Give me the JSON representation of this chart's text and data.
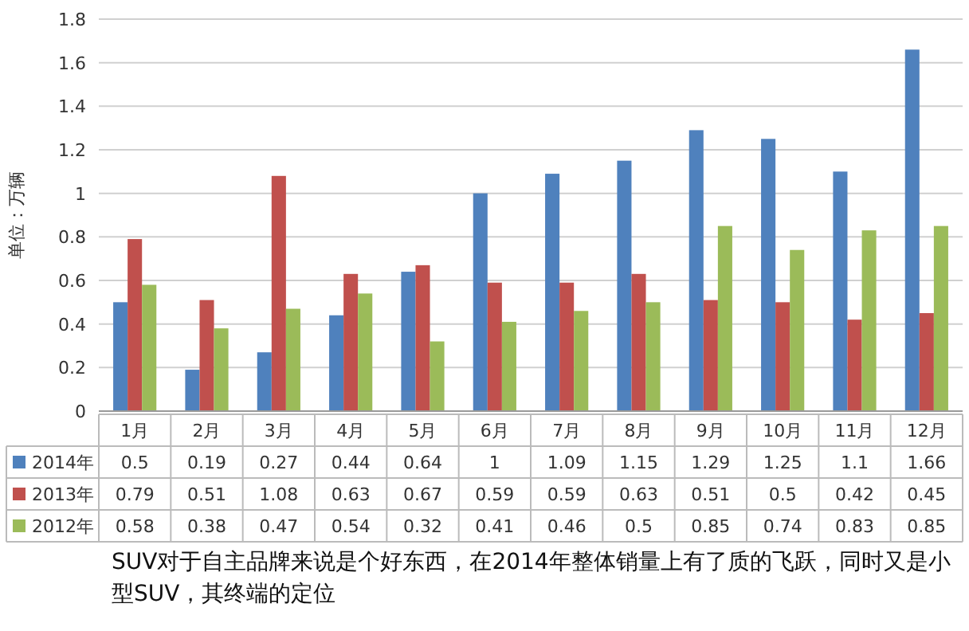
{
  "chart_data": {
    "type": "bar",
    "ylabel": "单位：万辆",
    "categories": [
      "1月",
      "2月",
      "3月",
      "4月",
      "5月",
      "6月",
      "7月",
      "8月",
      "9月",
      "10月",
      "11月",
      "12月"
    ],
    "series": [
      {
        "name": "2014年",
        "color": "#4f81bd",
        "values": [
          0.5,
          0.19,
          0.27,
          0.44,
          0.64,
          1,
          1.09,
          1.15,
          1.29,
          1.25,
          1.1,
          1.66
        ]
      },
      {
        "name": "2013年",
        "color": "#c0504d",
        "values": [
          0.79,
          0.51,
          1.08,
          0.63,
          0.67,
          0.59,
          0.59,
          0.63,
          0.51,
          0.5,
          0.42,
          0.45
        ]
      },
      {
        "name": "2012年",
        "color": "#9bbb59",
        "values": [
          0.58,
          0.38,
          0.47,
          0.54,
          0.32,
          0.41,
          0.46,
          0.5,
          0.85,
          0.74,
          0.83,
          0.85
        ]
      }
    ],
    "ylim": [
      0,
      1.8
    ],
    "yticks": [
      0,
      0.2,
      0.4,
      0.6,
      0.8,
      1,
      1.2,
      1.4,
      1.6,
      1.8
    ],
    "grid": "y",
    "legend": "bottom",
    "data_labels": true,
    "annotations": [
      "SUV对于自主品牌来说是个好东西，在2014年整体销量上有了质的飞跃，同时又是小型SUV，其终端的定位"
    ]
  }
}
